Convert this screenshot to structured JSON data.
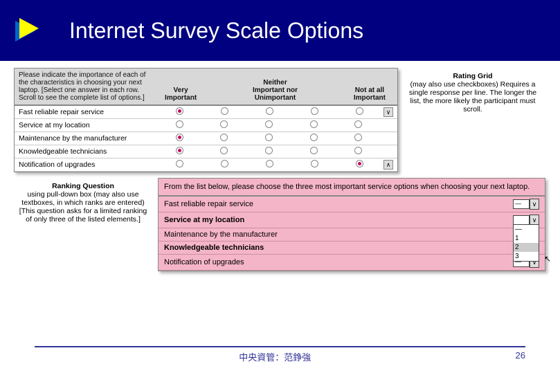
{
  "title": "Internet Survey Scale Options",
  "rating_grid": {
    "instruction": "Please indicate the importance of each of the characteristics in choosing your next laptop. [Select one answer in each row. Scroll to see the complete list of options.]",
    "columns": [
      "Very Important",
      "",
      "Neither Important nor Unimportant",
      "",
      "Not at all Important"
    ],
    "rows": [
      {
        "label": "Fast reliable repair service",
        "selected": 0
      },
      {
        "label": "Service at my location",
        "selected": -1
      },
      {
        "label": "Maintenance by the manufacturer",
        "selected": 0
      },
      {
        "label": "Knowledgeable technicians",
        "selected": 0
      },
      {
        "label": "Notification of upgrades",
        "selected": 4
      }
    ],
    "scroll_down": "∨",
    "scroll_up": "∧",
    "desc_title": "Rating Grid",
    "desc_text": "(may also use checkboxes) Requires a single response per line. The longer the list, the more likely the participant must scroll."
  },
  "ranking": {
    "desc_title": "Ranking Question",
    "desc_text": "using pull-down box (may also use textboxes, in which ranks are entered) [This question asks for a limited ranking of only three of the listed elements.]",
    "instruction": "From the list below, please choose the three most important service options when choosing your next laptop.",
    "rows": [
      {
        "label": "Fast reliable repair service",
        "value": "—",
        "bold": false,
        "open": false
      },
      {
        "label": "Service at my location",
        "value": "",
        "bold": true,
        "open": true
      },
      {
        "label": "Maintenance by the manufacturer",
        "value": "",
        "bold": false,
        "open": false,
        "hidden": true
      },
      {
        "label": "Knowledgeable technicians",
        "value": "",
        "bold": true,
        "open": false,
        "hidden": true
      },
      {
        "label": "Notification of upgrades",
        "value": "—",
        "bold": false,
        "open": false
      }
    ],
    "dropdown_options": [
      "—",
      "1",
      "2",
      "3"
    ],
    "dropdown_highlight": 2
  },
  "footer": {
    "center": "中央資管：范錚強",
    "page": "26"
  },
  "colors": {
    "header_bg": "#000080",
    "panel1_bg": "#d8d8d8",
    "panel2_bg": "#f5b5c8",
    "accent": "#cc0066",
    "footer_line": "#333399"
  }
}
